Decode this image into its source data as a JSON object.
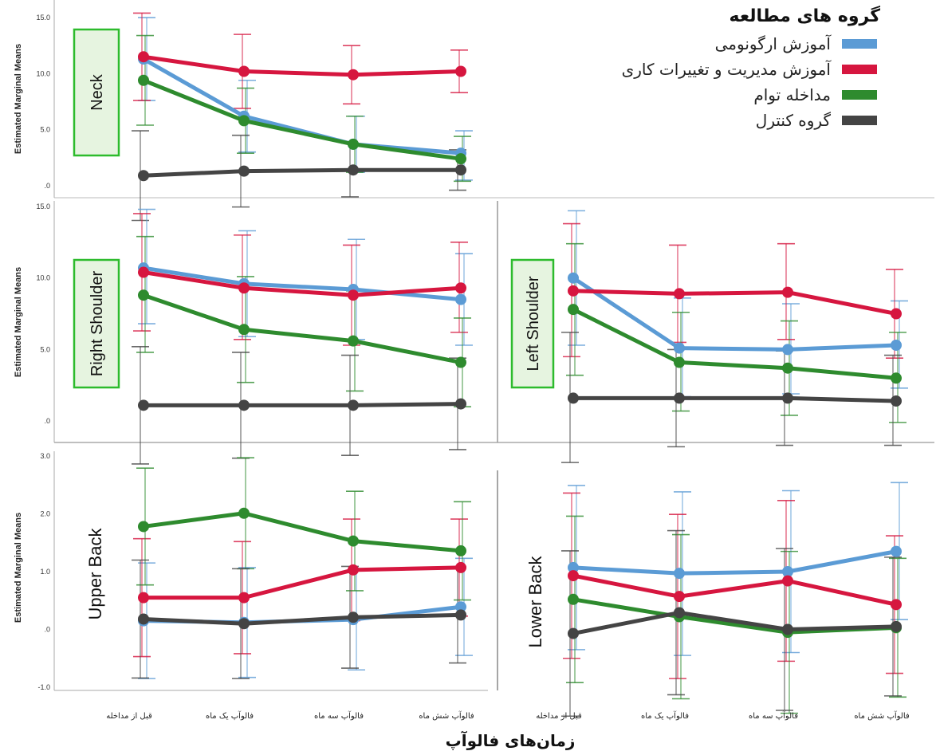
{
  "legend": {
    "title": "گروه های مطالعه",
    "items": [
      {
        "label": "آموزش ارگونومی",
        "color": "#5b9bd5"
      },
      {
        "label": "آموزش مدیریت و تغییرات کاری",
        "color": "#d6163f"
      },
      {
        "label": "مداخله توام",
        "color": "#2e8b2e"
      },
      {
        "label": "گروه کنترل",
        "color": "#444444"
      }
    ]
  },
  "x_axis_title": "زمان‌های فالوآپ",
  "ylabel": "Estimated Marginal Means",
  "colors": {
    "ergonomics": "#5b9bd5",
    "management": "#d6163f",
    "combined": "#2e8b2e",
    "control": "#444444",
    "label_box_bg": "#e6f4e0",
    "label_box_border": "#2dbb2d"
  },
  "chart_data": [
    {
      "type": "line",
      "title": "Neck",
      "categories": [
        "قبل از مداخله",
        "فالوآپ یک ماه",
        "فالوآپ سه ماه",
        "فالوآپ شش ماه"
      ],
      "ylim": [
        -1.5,
        15.5
      ],
      "yticks": [
        "15.0",
        "10.0",
        "5.0",
        ".0"
      ],
      "ytick_values": [
        15,
        10,
        5,
        0
      ],
      "series": [
        {
          "name": "آموزش ارگونومی",
          "values": [
            11.3,
            6.2,
            3.7,
            2.9
          ],
          "lo": [
            7.6,
            3.0,
            1.2,
            0.5
          ],
          "hi": [
            15.0,
            9.4,
            6.2,
            4.9
          ]
        },
        {
          "name": "آموزش مدیریت و تغییرات کاری",
          "values": [
            11.5,
            10.2,
            9.9,
            10.2
          ],
          "lo": [
            7.6,
            6.9,
            7.3,
            8.3
          ],
          "hi": [
            15.4,
            13.5,
            12.5,
            12.1
          ]
        },
        {
          "name": "مداخله توام",
          "values": [
            9.4,
            5.8,
            3.7,
            2.4
          ],
          "lo": [
            5.4,
            2.9,
            1.2,
            0.4
          ],
          "hi": [
            13.4,
            8.7,
            6.2,
            4.4
          ]
        },
        {
          "name": "گروه کنترل",
          "values": [
            0.9,
            1.3,
            1.4,
            1.4
          ],
          "lo": [
            -3.1,
            -1.9,
            -1.0,
            -0.4
          ],
          "hi": [
            4.9,
            4.5,
            3.8,
            3.2
          ]
        }
      ]
    },
    {
      "type": "line",
      "title": "Right Shoulder",
      "categories": [
        "قبل از مداخله",
        "فالوآپ یک ماه",
        "فالوآپ سه ماه",
        "فالوآپ شش ماه"
      ],
      "ylim": [
        -1.5,
        15.0
      ],
      "yticks": [
        "15.0",
        "10.0",
        "5.0",
        ".0"
      ],
      "ytick_values": [
        15,
        10,
        5,
        0
      ],
      "series": [
        {
          "name": "آموزش ارگونومی",
          "values": [
            10.7,
            9.6,
            9.2,
            8.5
          ],
          "lo": [
            6.8,
            5.9,
            5.7,
            5.3
          ],
          "hi": [
            14.8,
            13.3,
            12.7,
            11.7
          ]
        },
        {
          "name": "آموزش مدیریت و تغییرات کاری",
          "values": [
            10.4,
            9.3,
            8.8,
            9.3
          ],
          "lo": [
            6.3,
            5.7,
            5.3,
            6.2
          ],
          "hi": [
            14.5,
            13.0,
            12.3,
            12.5
          ]
        },
        {
          "name": "مداخله توام",
          "values": [
            8.8,
            6.4,
            5.6,
            4.1
          ],
          "lo": [
            4.8,
            2.7,
            2.1,
            1.0
          ],
          "hi": [
            12.9,
            10.1,
            9.1,
            7.2
          ]
        },
        {
          "name": "گروه کنترل",
          "values": [
            1.1,
            1.1,
            1.1,
            1.2
          ],
          "lo": [
            -3.0,
            -2.6,
            -2.4,
            -2.0
          ],
          "hi": [
            5.2,
            4.8,
            4.6,
            4.4
          ]
        }
      ]
    },
    {
      "type": "line",
      "title": "Left Shoulder",
      "categories": [
        "قبل از مداخله",
        "فالوآپ یک ماه",
        "فالوآپ سه ماه",
        "فالوآپ شش ماه"
      ],
      "ylim": [
        -1.5,
        15.0
      ],
      "yticks": [],
      "ytick_values": [],
      "series": [
        {
          "name": "آموزش ارگونومی",
          "values": [
            10.0,
            5.1,
            5.0,
            5.3
          ],
          "lo": [
            5.3,
            1.7,
            1.9,
            2.3
          ],
          "hi": [
            14.7,
            8.6,
            8.2,
            8.4
          ]
        },
        {
          "name": "آموزش مدیریت و تغییرات کاری",
          "values": [
            9.1,
            8.9,
            9.0,
            7.5
          ],
          "lo": [
            4.5,
            5.5,
            5.7,
            4.4
          ],
          "hi": [
            13.8,
            12.3,
            12.4,
            10.6
          ]
        },
        {
          "name": "مداخله توام",
          "values": [
            7.8,
            4.1,
            3.7,
            3.0
          ],
          "lo": [
            3.2,
            0.7,
            0.4,
            -0.1
          ],
          "hi": [
            12.4,
            7.6,
            7.0,
            6.2
          ]
        },
        {
          "name": "گروه کنترل",
          "values": [
            1.6,
            1.6,
            1.6,
            1.4
          ],
          "lo": [
            -2.9,
            -1.8,
            -1.7,
            -1.7
          ],
          "hi": [
            6.2,
            5.0,
            4.9,
            4.6
          ]
        }
      ]
    },
    {
      "type": "line",
      "title": "Upper Back",
      "categories": [
        "قبل از مداخله",
        "فالوآپ یک ماه",
        "فالوآپ سه ماه",
        "فالوآپ شش ماه"
      ],
      "ylim": [
        -1.0,
        3.0
      ],
      "yticks": [
        "3.0",
        "2.0",
        "1.0",
        ".0",
        "-1.0"
      ],
      "ytick_values": [
        3,
        2,
        1,
        0,
        -1
      ],
      "series": [
        {
          "name": "آموزش ارگونومی",
          "values": [
            0.15,
            0.12,
            0.17,
            0.39
          ],
          "lo": [
            -0.85,
            -0.83,
            -0.7,
            -0.45
          ],
          "hi": [
            1.15,
            1.07,
            1.04,
            1.23
          ]
        },
        {
          "name": "آموزش مدیریت و تغییرات کاری",
          "values": [
            0.55,
            0.55,
            1.03,
            1.07
          ],
          "lo": [
            -0.47,
            -0.42,
            0.15,
            0.23
          ],
          "hi": [
            1.57,
            1.52,
            1.91,
            1.91
          ]
        },
        {
          "name": "مداخله توام",
          "values": [
            1.78,
            2.01,
            1.53,
            1.36
          ],
          "lo": [
            0.77,
            1.05,
            0.67,
            0.51
          ],
          "hi": [
            2.79,
            2.97,
            2.39,
            2.21
          ]
        },
        {
          "name": "گروه کنترل",
          "values": [
            0.18,
            0.1,
            0.21,
            0.25
          ],
          "lo": [
            -0.84,
            -0.85,
            -0.67,
            -0.58
          ],
          "hi": [
            1.2,
            1.05,
            1.09,
            1.08
          ]
        }
      ]
    },
    {
      "type": "line",
      "title": "Lower Back",
      "categories": [
        "قبل از مداخله",
        "فالوآپ یک ماه",
        "فالوآپ سه ماه",
        "فالوآپ شش ماه"
      ],
      "ylim": [
        -1.0,
        3.0
      ],
      "yticks": [],
      "ytick_values": [],
      "series": [
        {
          "name": "آموزش ارگونومی",
          "values": [
            1.07,
            0.97,
            1.0,
            1.35
          ],
          "lo": [
            -0.35,
            -0.45,
            -0.4,
            0.17
          ],
          "hi": [
            2.49,
            2.38,
            2.4,
            2.54
          ]
        },
        {
          "name": "آموزش مدیریت و تغییرات کاری",
          "values": [
            0.93,
            0.57,
            0.84,
            0.43
          ],
          "lo": [
            -0.5,
            -0.85,
            -0.55,
            -0.76
          ],
          "hi": [
            2.36,
            1.99,
            2.23,
            1.62
          ]
        },
        {
          "name": "مداخله توام",
          "values": [
            0.52,
            0.22,
            -0.05,
            0.03
          ],
          "lo": [
            -0.92,
            -1.2,
            -1.45,
            -1.17
          ],
          "hi": [
            1.96,
            1.64,
            1.35,
            1.23
          ]
        },
        {
          "name": "گروه کنترل",
          "values": [
            -0.07,
            0.29,
            0.0,
            0.05
          ],
          "lo": [
            -1.5,
            -1.13,
            -1.4,
            -1.15
          ],
          "hi": [
            1.36,
            1.71,
            1.4,
            1.25
          ]
        }
      ]
    }
  ]
}
